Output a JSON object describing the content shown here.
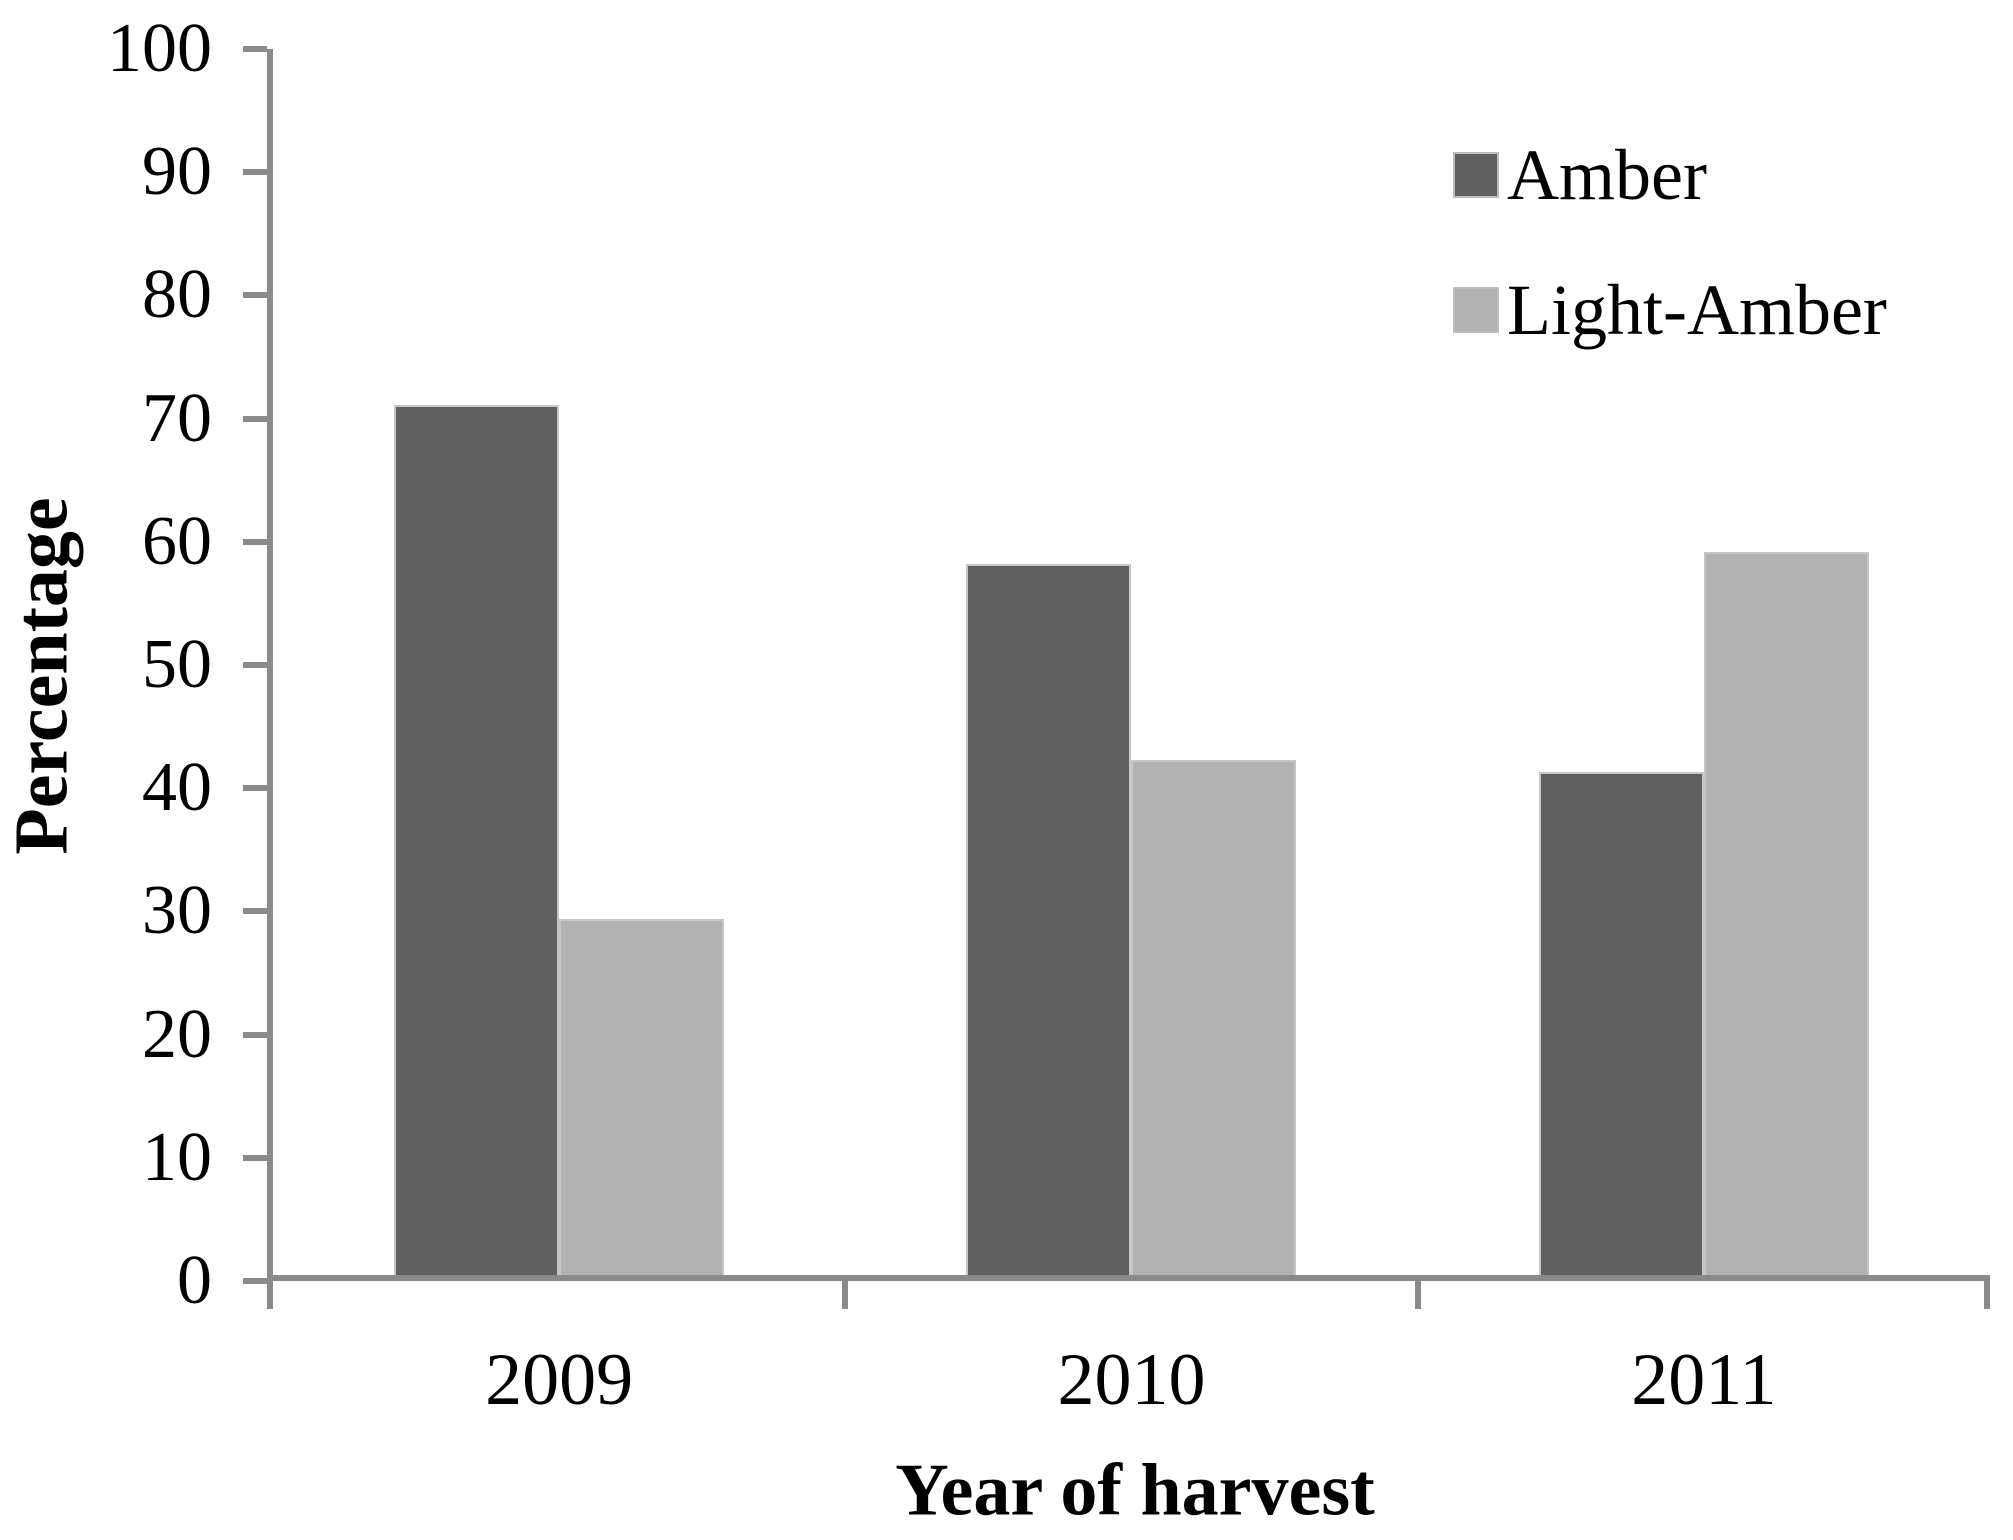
{
  "chart_data": {
    "type": "bar",
    "categories": [
      "2009",
      "2010",
      "2011"
    ],
    "series": [
      {
        "name": "Amber",
        "color": "#606060",
        "values": [
          71,
          58,
          41
        ]
      },
      {
        "name": "Light-Amber",
        "color": "#b2b2b2",
        "values": [
          29,
          42,
          59
        ]
      }
    ],
    "title": "",
    "xlabel": "Year of harvest",
    "ylabel": "Percentage",
    "ylim": [
      0,
      100
    ],
    "yticks": [
      "0",
      "10",
      "20",
      "30",
      "40",
      "50",
      "60",
      "70",
      "80",
      "90",
      "100"
    ],
    "grid": false,
    "legend_position": "upper-right",
    "axis_color": "#8a8a8a",
    "bar_border_color": "#c6c6c6"
  }
}
